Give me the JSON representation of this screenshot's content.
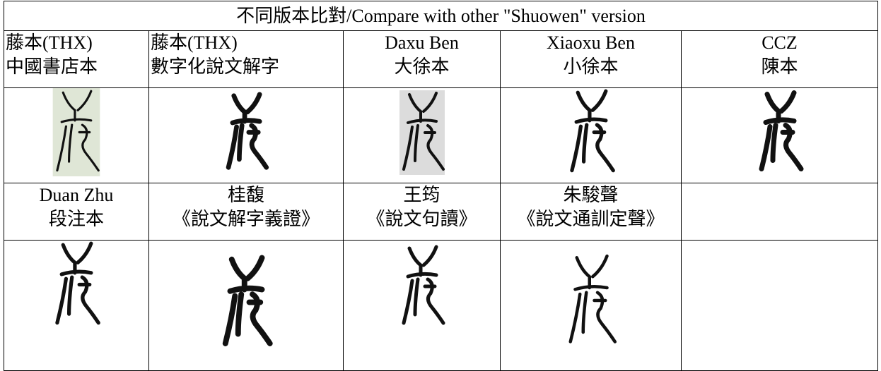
{
  "table": {
    "title": "不同版本比對/Compare with other \"Shuowen\" version",
    "groups": [
      {
        "cells": [
          [
            "藤本(THX)",
            "中國書店本"
          ],
          [
            "藤本(THX)",
            "數字化說文解字"
          ],
          [
            "Daxu Ben",
            "大徐本"
          ],
          [
            "Xiaoxu Ben",
            "小徐本"
          ],
          [
            "CCZ",
            "陳本"
          ]
        ]
      },
      {
        "cells": [
          [
            "Duan Zhu",
            "段注本"
          ],
          [
            "桂馥",
            "《說文解字義證》"
          ],
          [
            "王筠",
            "《說文句讀》"
          ],
          [
            "朱駿聲",
            "《說文通訓定聲》"
          ]
        ]
      }
    ]
  }
}
